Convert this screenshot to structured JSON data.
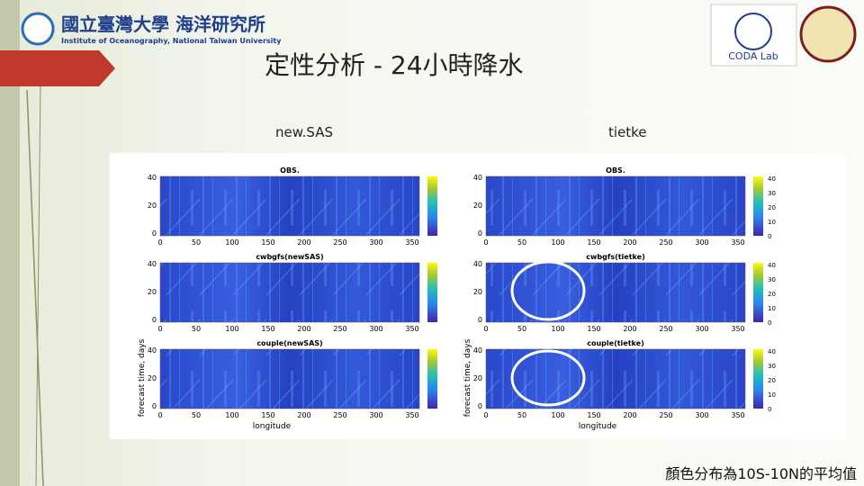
{
  "header": {
    "logo_cn": "國立臺灣大學 海洋研究所",
    "logo_en": "Institute of Oceanography, National Taiwan University",
    "lab": "CODA Lab"
  },
  "title": "定性分析 - 24小時降水",
  "columns": [
    "new.SAS",
    "tietke"
  ],
  "figure": {
    "panels": [
      [
        "OBS.",
        "cwbgfs(newSAS)",
        "couple(newSAS)"
      ],
      [
        "OBS.",
        "cwbgfs(tietke)",
        "couple(tietke)"
      ]
    ],
    "xticks": [
      0,
      50,
      100,
      150,
      200,
      250,
      300,
      350
    ],
    "yticks": [
      0,
      20,
      40
    ],
    "cbticks": [
      0,
      10,
      20,
      30,
      40
    ],
    "xlabel": "longitude",
    "ylabel": "forecast time, days"
  },
  "footnote": "顏色分布為10S-10N的平均值"
}
